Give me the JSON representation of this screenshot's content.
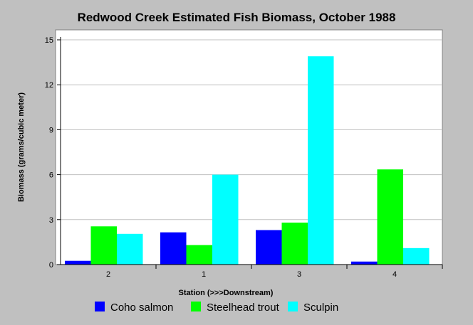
{
  "chart_data": {
    "type": "bar",
    "title": "Redwood Creek Estimated Fish Biomass, October 1988",
    "xlabel": "Station (>>>Downstream)",
    "ylabel": "Biomass (grams/cubic meter)",
    "categories": [
      "2",
      "1",
      "3",
      "4"
    ],
    "ylim": [
      0,
      15
    ],
    "yticks": [
      0,
      3,
      6,
      9,
      12,
      15
    ],
    "grid": true,
    "legend_position": "bottom",
    "series": [
      {
        "name": "Coho salmon",
        "color": "#0000ff",
        "values": [
          0.25,
          2.15,
          2.3,
          0.2
        ]
      },
      {
        "name": "Steelhead trout",
        "color": "#00ff00",
        "values": [
          2.55,
          1.3,
          2.8,
          6.35
        ]
      },
      {
        "name": "Sculpin",
        "color": "#00ffff",
        "values": [
          2.05,
          6.0,
          13.9,
          1.1
        ]
      }
    ]
  }
}
